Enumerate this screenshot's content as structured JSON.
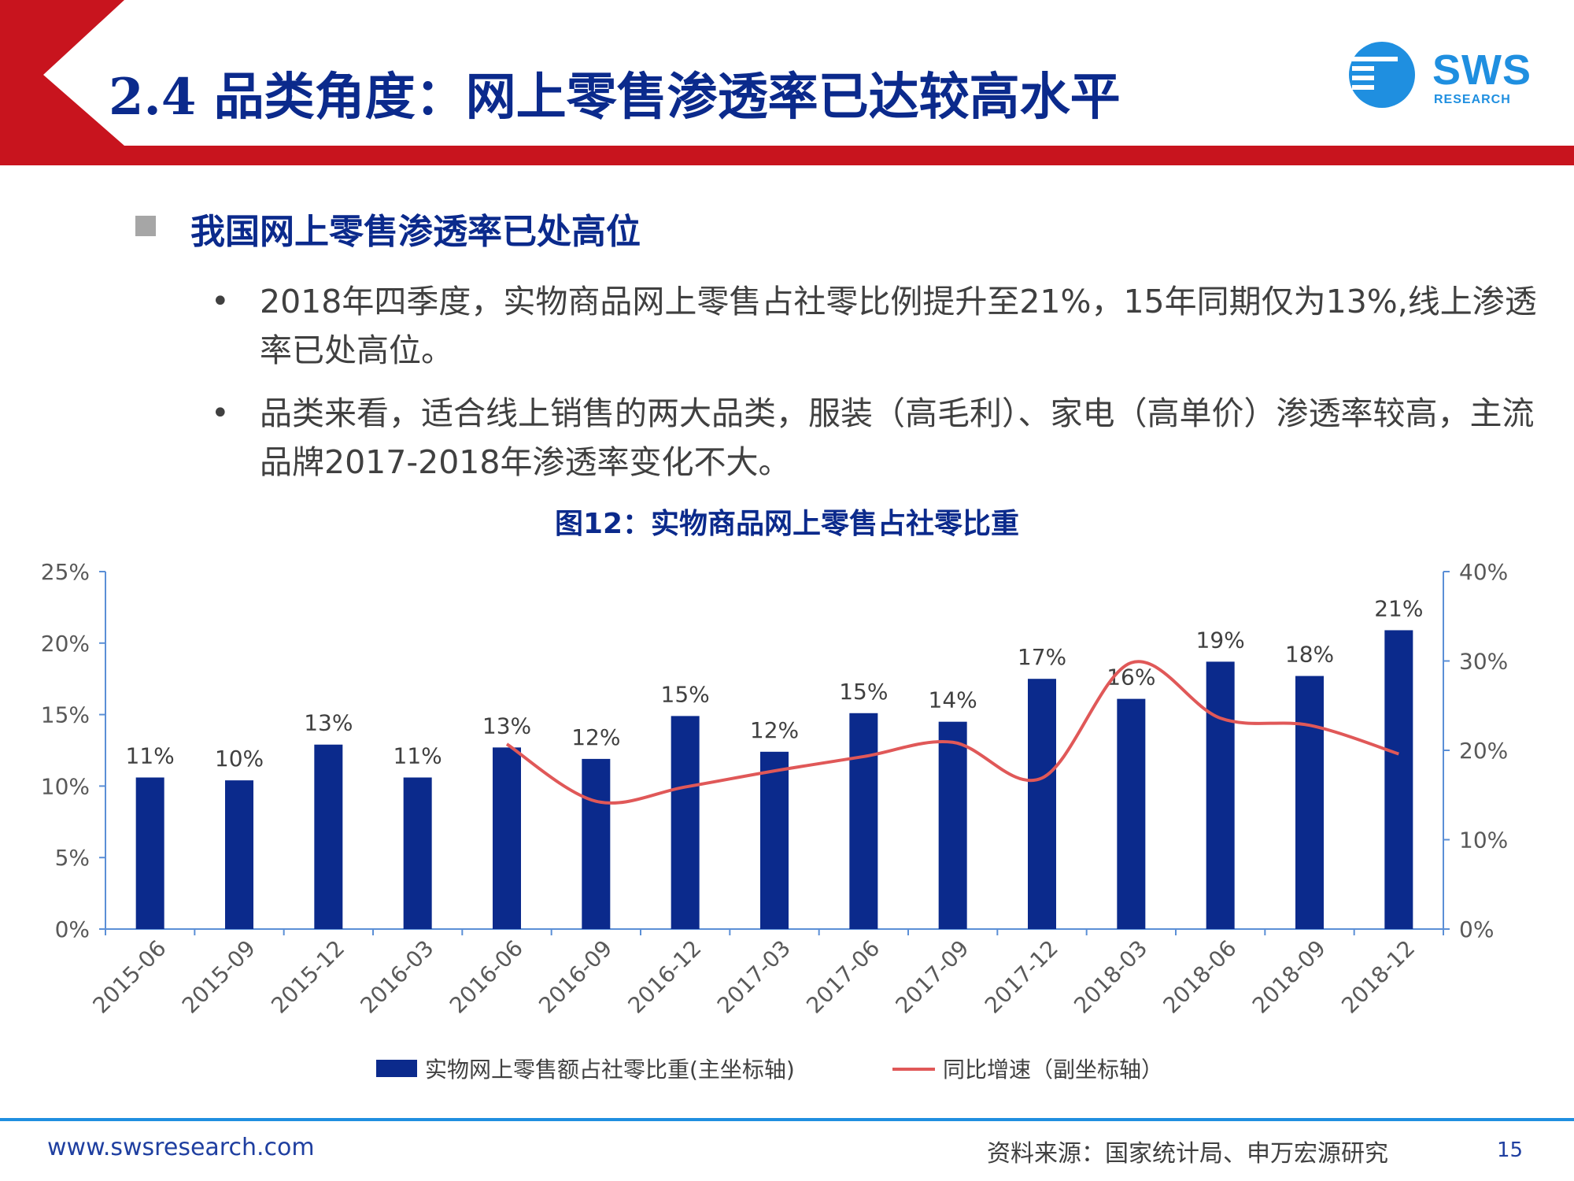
{
  "slide": {
    "title": "2.4 品类角度：网上零售渗透率已达较高水平",
    "logo_text": "SWS",
    "logo_sub": "RESEARCH"
  },
  "section": {
    "heading": "我国网上零售渗透率已处高位",
    "bullets": [
      "2018年四季度，实物商品网上零售占社零比例提升至21%，15年同期仅为13%,线上渗透率已处高位。",
      "品类来看，适合线上销售的两大品类，服装（高毛利）、家电（高单价）渗透率较高，主流品牌2017-2018年渗透率变化不大。"
    ],
    "bullet_glyph": "•"
  },
  "figure": {
    "title": "图12：实物商品网上零售占社零比重"
  },
  "chart_data": {
    "type": "bar",
    "categories": [
      "2015-06",
      "2015-09",
      "2015-12",
      "2016-03",
      "2016-06",
      "2016-09",
      "2016-12",
      "2017-03",
      "2017-06",
      "2017-09",
      "2017-12",
      "2018-03",
      "2018-06",
      "2018-09",
      "2018-12"
    ],
    "series": [
      {
        "name": "实物网上零售额占社零比重(主坐标轴)",
        "type": "bar",
        "axis": "primary",
        "color": "#0b2a8c",
        "values": [
          10.6,
          10.4,
          12.9,
          10.6,
          12.7,
          11.9,
          14.9,
          12.4,
          15.1,
          14.5,
          17.5,
          16.1,
          18.7,
          17.7,
          20.9
        ],
        "data_labels": [
          "11%",
          "10%",
          "13%",
          "11%",
          "13%",
          "12%",
          "15%",
          "12%",
          "15%",
          "14%",
          "17%",
          "16%",
          "19%",
          "18%",
          "21%"
        ]
      },
      {
        "name": "同比增速（副坐标轴）",
        "type": "line",
        "axis": "secondary",
        "color": "#e05858",
        "values": [
          null,
          null,
          null,
          null,
          20.7,
          14.3,
          15.9,
          17.7,
          19.3,
          20.9,
          16.9,
          29.8,
          23.6,
          22.8,
          19.6
        ]
      }
    ],
    "y_ticks": [
      "0%",
      "5%",
      "10%",
      "15%",
      "20%",
      "25%"
    ],
    "y2_ticks": [
      "0%",
      "10%",
      "20%",
      "30%",
      "40%"
    ],
    "ylim": [
      0,
      25
    ],
    "y2lim": [
      0,
      40
    ],
    "grid": false,
    "legend_position": "bottom"
  },
  "footer": {
    "website": "www.swsresearch.com",
    "source": "资料来源：国家统计局、申万宏源研究",
    "page": "15"
  },
  "colors": {
    "brand_red": "#c8141e",
    "title_blue": "#0b2a8c",
    "accent_blue": "#1f8fe0"
  }
}
